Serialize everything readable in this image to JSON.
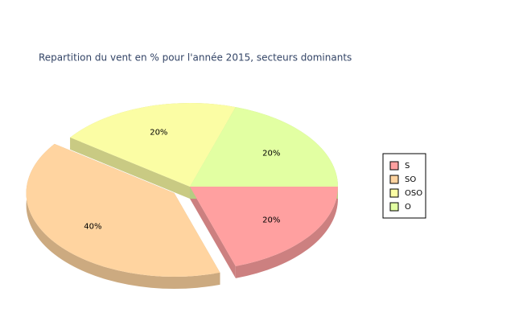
{
  "chart_data": {
    "type": "pie3d",
    "title": "Repartition du vent en % pour l'année 2015, secteurs dominants",
    "categories": [
      "S",
      "SO",
      "OSO",
      "O"
    ],
    "values": [
      20,
      40,
      20,
      20
    ],
    "value_labels": [
      "20%",
      "40%",
      "20%",
      "20%"
    ],
    "colors": [
      "#ffa0a0",
      "#ffd4a0",
      "#fbfda4",
      "#e2ffa2"
    ],
    "exploded": [
      false,
      true,
      false,
      false
    ],
    "legend": "right"
  }
}
